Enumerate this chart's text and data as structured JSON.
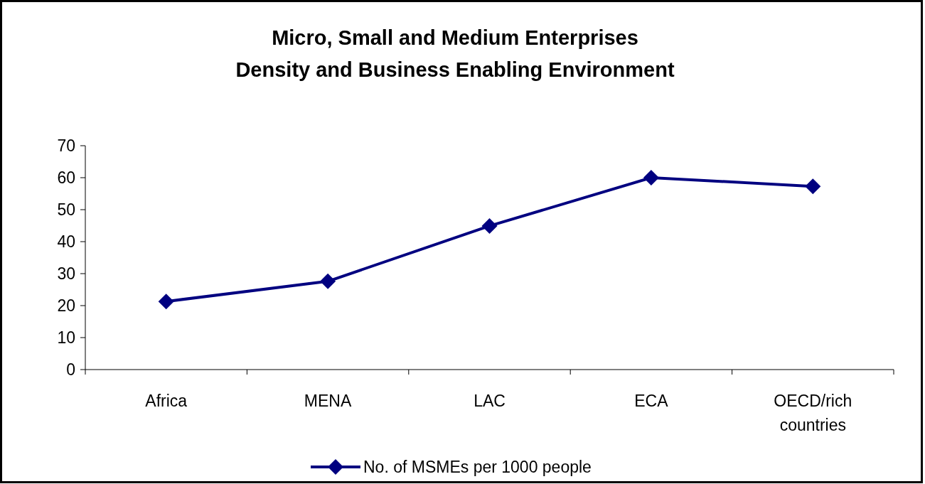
{
  "chart_data": {
    "type": "line",
    "title": "Micro, Small and Medium Enterprises\nDensity and Business Enabling Environment",
    "categories": [
      "Africa",
      "MENA",
      "LAC",
      "ECA",
      "OECD/rich\ncountries"
    ],
    "series": [
      {
        "name": "No. of MSMEs per 1000 people",
        "color": "#000080",
        "values": [
          21.3,
          27.6,
          44.9,
          60,
          57.3
        ]
      }
    ],
    "ylim": [
      0,
      70
    ],
    "yticks": [
      0,
      10,
      20,
      30,
      40,
      50,
      60,
      70
    ],
    "grid": false,
    "legend": "bottom",
    "marker": "diamond",
    "line_style": "solid"
  }
}
